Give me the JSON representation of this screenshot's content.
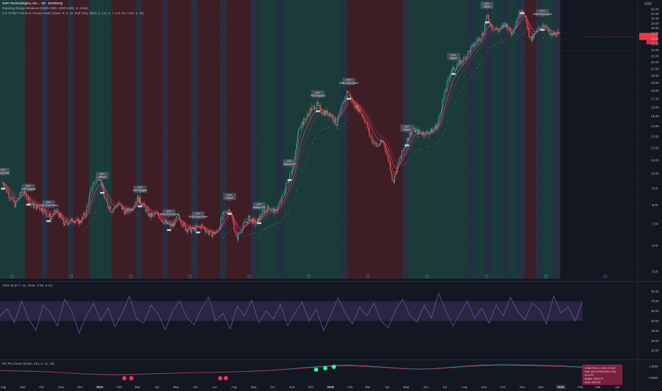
{
  "header": {
    "title": "SoFi Technologies, Inc. · 1D · NASDAQ",
    "indicator_1": "Opening Range Breakout (0930-1000, 1000-1300, 3, close)",
    "indicator_2": "1-2-3 Filter Trend w/ Choice Subs (close, 6, 9, 12, Bull Only, Slow, 5, 1.5, 2, 7, 0.9, 10, 0.25, 3, 10)",
    "currency": "USD"
  },
  "panes": {
    "rsi_label": "LRSI v6 (0.7, 13, close, 0.59, 0.41)",
    "lower_label": "RS Pro Clean (close, 123, 3, 12, 36)"
  },
  "info_box": {
    "lines": [
      "CONDITION: 1 DAYS TODAY",
      "SMA: (NO OPEN/HIGH/LOW) 0UTOFF",
      "Weight: 4695.675",
      "Score: 6900.52"
    ]
  },
  "colors": {
    "background": "#131722",
    "bull_band": "#1b3b3a",
    "bear_band": "#3f1d25",
    "neutral_band": "#273043",
    "up_candle": "#26a69a",
    "down_candle": "#ef5350",
    "rsi_line": "#7e57c2",
    "price_tag": "#f23645",
    "label_bg": "#4f5662"
  },
  "chart_data": [
    {
      "type": "candlestick",
      "title": "SoFi Technologies, Inc. · 1D · NASDAQ",
      "ylabel": "USD",
      "log_scale": true,
      "ylim": [
        4.75,
        33.5
      ],
      "x_tick_labels": [
        "Aug",
        "Sep",
        "Oct",
        "Nov",
        "Dec",
        "2024",
        "Feb",
        "Mar",
        "Apr",
        "May",
        "Jun",
        "Jul",
        "Aug",
        "Sep",
        "Oct",
        "Nov",
        "Dec",
        "2025",
        "Feb",
        "Mar",
        "Apr",
        "May",
        "Jun",
        "Jul",
        "Aug",
        "Sep",
        "Oct",
        "Nov",
        "Dec",
        "2026",
        "Feb",
        "Mar",
        "Apr"
      ],
      "y_tick_labels": [
        5,
        6,
        7,
        8,
        9,
        10,
        11,
        12,
        13,
        14,
        15,
        16,
        17,
        18,
        19,
        20,
        21,
        22,
        23,
        24,
        25,
        26,
        27,
        28,
        29,
        30,
        31,
        32
      ],
      "last_price": 26.4,
      "price_path": [
        {
          "t": "2023-07-31",
          "v": 9.4
        },
        {
          "t": "2023-08-10",
          "v": 8.6
        },
        {
          "t": "2023-08-20",
          "v": 8.0
        },
        {
          "t": "2023-09-01",
          "v": 8.9
        },
        {
          "t": "2023-09-15",
          "v": 8.0
        },
        {
          "t": "2023-10-01",
          "v": 7.8
        },
        {
          "t": "2023-10-15",
          "v": 7.3
        },
        {
          "t": "2023-10-25",
          "v": 7.7
        },
        {
          "t": "2023-11-05",
          "v": 7.0
        },
        {
          "t": "2023-11-20",
          "v": 7.2
        },
        {
          "t": "2023-12-01",
          "v": 7.1
        },
        {
          "t": "2023-12-10",
          "v": 7.6
        },
        {
          "t": "2023-12-20",
          "v": 9.2
        },
        {
          "t": "2023-12-31",
          "v": 9.9
        },
        {
          "t": "2024-01-10",
          "v": 8.2
        },
        {
          "t": "2024-01-20",
          "v": 7.7
        },
        {
          "t": "2024-01-31",
          "v": 8.1
        },
        {
          "t": "2024-02-10",
          "v": 7.6
        },
        {
          "t": "2024-02-20",
          "v": 7.8
        },
        {
          "t": "2024-03-01",
          "v": 8.4
        },
        {
          "t": "2024-03-10",
          "v": 8.0
        },
        {
          "t": "2024-03-20",
          "v": 7.4
        },
        {
          "t": "2024-04-01",
          "v": 7.5
        },
        {
          "t": "2024-04-15",
          "v": 7.0
        },
        {
          "t": "2024-04-25",
          "v": 6.9
        },
        {
          "t": "2024-05-05",
          "v": 7.4
        },
        {
          "t": "2024-05-15",
          "v": 6.8
        },
        {
          "t": "2024-05-25",
          "v": 6.7
        },
        {
          "t": "2024-06-10",
          "v": 6.9
        },
        {
          "t": "2024-06-25",
          "v": 6.5
        },
        {
          "t": "2024-07-05",
          "v": 6.6
        },
        {
          "t": "2024-07-15",
          "v": 7.5
        },
        {
          "t": "2024-07-25",
          "v": 7.8
        },
        {
          "t": "2024-08-05",
          "v": 6.3
        },
        {
          "t": "2024-08-15",
          "v": 6.9
        },
        {
          "t": "2024-08-25",
          "v": 7.3
        },
        {
          "t": "2024-09-05",
          "v": 7.0
        },
        {
          "t": "2024-09-15",
          "v": 7.6
        },
        {
          "t": "2024-09-25",
          "v": 7.9
        },
        {
          "t": "2024-10-05",
          "v": 7.6
        },
        {
          "t": "2024-10-15",
          "v": 8.3
        },
        {
          "t": "2024-10-25",
          "v": 9.5
        },
        {
          "t": "2024-11-05",
          "v": 11.0
        },
        {
          "t": "2024-11-12",
          "v": 14.0
        },
        {
          "t": "2024-11-20",
          "v": 14.5
        },
        {
          "t": "2024-12-01",
          "v": 15.8
        },
        {
          "t": "2024-12-10",
          "v": 16.3
        },
        {
          "t": "2024-12-20",
          "v": 15.4
        },
        {
          "t": "2024-12-31",
          "v": 15.3
        },
        {
          "t": "2025-01-10",
          "v": 14.2
        },
        {
          "t": "2025-01-20",
          "v": 16.2
        },
        {
          "t": "2025-01-28",
          "v": 18.0
        },
        {
          "t": "2025-02-05",
          "v": 16.5
        },
        {
          "t": "2025-02-15",
          "v": 15.8
        },
        {
          "t": "2025-02-25",
          "v": 14.5
        },
        {
          "t": "2025-03-05",
          "v": 12.9
        },
        {
          "t": "2025-03-15",
          "v": 12.1
        },
        {
          "t": "2025-03-25",
          "v": 12.6
        },
        {
          "t": "2025-04-05",
          "v": 10.6
        },
        {
          "t": "2025-04-10",
          "v": 9.4
        },
        {
          "t": "2025-04-20",
          "v": 11.0
        },
        {
          "t": "2025-04-30",
          "v": 12.4
        },
        {
          "t": "2025-05-10",
          "v": 13.7
        },
        {
          "t": "2025-05-20",
          "v": 13.4
        },
        {
          "t": "2025-05-31",
          "v": 13.3
        },
        {
          "t": "2025-06-10",
          "v": 13.5
        },
        {
          "t": "2025-06-20",
          "v": 14.2
        },
        {
          "t": "2025-06-30",
          "v": 17.5
        },
        {
          "t": "2025-07-10",
          "v": 20.5
        },
        {
          "t": "2025-07-20",
          "v": 21.5
        },
        {
          "t": "2025-07-31",
          "v": 22.5
        },
        {
          "t": "2025-08-10",
          "v": 24.0
        },
        {
          "t": "2025-08-20",
          "v": 25.5
        },
        {
          "t": "2025-08-31",
          "v": 27.0
        },
        {
          "t": "2025-09-05",
          "v": 30.5
        },
        {
          "t": "2025-09-15",
          "v": 28.0
        },
        {
          "t": "2025-09-25",
          "v": 27.5
        },
        {
          "t": "2025-10-05",
          "v": 29.0
        },
        {
          "t": "2025-10-15",
          "v": 26.8
        },
        {
          "t": "2025-10-25",
          "v": 30.5
        },
        {
          "t": "2025-11-01",
          "v": 32.3
        },
        {
          "t": "2025-11-08",
          "v": 28.5
        },
        {
          "t": "2025-11-15",
          "v": 25.7
        },
        {
          "t": "2025-11-25",
          "v": 27.5
        },
        {
          "t": "2025-12-05",
          "v": 29.0
        },
        {
          "t": "2025-12-15",
          "v": 26.5
        },
        {
          "t": "2025-12-25",
          "v": 27.0
        },
        {
          "t": "2025-12-31",
          "v": 26.4
        }
      ],
      "labels": [
        {
          "t": "2023-08-01",
          "text": "DXT\nbBaud ATR"
        },
        {
          "t": "2023-09-10",
          "text": "DXT\nATR Stopped"
        },
        {
          "t": "2023-10-12",
          "text": "DXT\nEMA Cross Down"
        },
        {
          "t": "2024-01-05",
          "text": "DXT\nbBaud"
        },
        {
          "t": "2024-03-05",
          "text": "DXT\nATR Stopped"
        },
        {
          "t": "2024-04-20",
          "text": "DXT\nEMA Cross Down"
        },
        {
          "t": "2024-06-05",
          "text": "DXT\nEMA Cross Down"
        },
        {
          "t": "2024-07-25",
          "text": "DXT\nbBaud"
        },
        {
          "t": "2024-09-10",
          "text": "DXT\nbBaud ATR"
        },
        {
          "t": "2024-10-28",
          "text": "DXT\nbBaud ATR"
        },
        {
          "t": "2024-12-12",
          "text": "DXT\nATR Stopped"
        },
        {
          "t": "2025-01-30",
          "text": "DXT\nEMA Cross Down"
        },
        {
          "t": "2025-05-02",
          "text": "DXT\nbBaud"
        },
        {
          "t": "2025-07-15",
          "text": "DXT\nbBaud"
        },
        {
          "t": "2025-09-06",
          "text": "DXT\nbBaud"
        },
        {
          "t": "2025-11-01",
          "text": "DXT\nEMA Cross Down"
        },
        {
          "t": "2025-12-03",
          "text": "DXT\nEMA Cross Down"
        }
      ],
      "bands": [
        {
          "start": "2023-07-25",
          "end": "2023-09-05",
          "kind": "bull"
        },
        {
          "start": "2023-09-05",
          "end": "2023-10-01",
          "kind": "bear"
        },
        {
          "start": "2023-10-01",
          "end": "2023-10-10",
          "kind": "neutral"
        },
        {
          "start": "2023-10-10",
          "end": "2023-11-12",
          "kind": "bear"
        },
        {
          "start": "2023-11-12",
          "end": "2023-11-20",
          "kind": "neutral"
        },
        {
          "start": "2023-11-20",
          "end": "2023-12-15",
          "kind": "bear"
        },
        {
          "start": "2023-12-15",
          "end": "2024-01-20",
          "kind": "bull"
        },
        {
          "start": "2024-01-20",
          "end": "2024-02-28",
          "kind": "bear"
        },
        {
          "start": "2024-02-28",
          "end": "2024-03-08",
          "kind": "neutral"
        },
        {
          "start": "2024-03-08",
          "end": "2024-04-10",
          "kind": "bear"
        },
        {
          "start": "2024-04-10",
          "end": "2024-04-18",
          "kind": "neutral"
        },
        {
          "start": "2024-04-18",
          "end": "2024-05-25",
          "kind": "bear"
        },
        {
          "start": "2024-05-25",
          "end": "2024-06-05",
          "kind": "neutral"
        },
        {
          "start": "2024-06-05",
          "end": "2024-07-10",
          "kind": "bear"
        },
        {
          "start": "2024-07-10",
          "end": "2024-07-20",
          "kind": "neutral"
        },
        {
          "start": "2024-07-20",
          "end": "2024-08-28",
          "kind": "bear"
        },
        {
          "start": "2024-08-28",
          "end": "2024-09-08",
          "kind": "neutral"
        },
        {
          "start": "2024-09-08",
          "end": "2024-10-10",
          "kind": "bull"
        },
        {
          "start": "2024-10-10",
          "end": "2024-10-18",
          "kind": "neutral"
        },
        {
          "start": "2024-10-18",
          "end": "2025-01-18",
          "kind": "bull"
        },
        {
          "start": "2025-01-18",
          "end": "2025-01-28",
          "kind": "neutral"
        },
        {
          "start": "2025-01-28",
          "end": "2025-04-25",
          "kind": "bear"
        },
        {
          "start": "2025-04-25",
          "end": "2025-05-05",
          "kind": "neutral"
        },
        {
          "start": "2025-05-05",
          "end": "2025-08-05",
          "kind": "bull"
        },
        {
          "start": "2025-08-05",
          "end": "2025-08-15",
          "kind": "neutral"
        },
        {
          "start": "2025-08-15",
          "end": "2025-09-01",
          "kind": "bull"
        },
        {
          "start": "2025-09-01",
          "end": "2025-09-12",
          "kind": "neutral"
        },
        {
          "start": "2025-09-12",
          "end": "2025-10-01",
          "kind": "bull"
        },
        {
          "start": "2025-10-01",
          "end": "2025-10-10",
          "kind": "neutral"
        },
        {
          "start": "2025-10-10",
          "end": "2025-10-25",
          "kind": "bull"
        },
        {
          "start": "2025-10-25",
          "end": "2025-11-05",
          "kind": "neutral"
        },
        {
          "start": "2025-11-05",
          "end": "2025-11-22",
          "kind": "bear"
        },
        {
          "start": "2025-11-22",
          "end": "2025-12-02",
          "kind": "neutral"
        },
        {
          "start": "2025-12-02",
          "end": "2025-12-20",
          "kind": "bull"
        },
        {
          "start": "2025-12-20",
          "end": "2025-12-31",
          "kind": "neutral"
        }
      ]
    },
    {
      "type": "line",
      "title": "LRSI v6 (0.7, 13, close, 0.59, 0.41)",
      "ylim": [
        15,
        87
      ],
      "y_tick_labels": [
        "20.00",
        "30.00",
        "40.00",
        "50.00",
        "60.00",
        "70.00",
        "80.00"
      ],
      "band": [
        50,
        70
      ],
      "series": [
        {
          "values": [
            55,
            62,
            48,
            70,
            52,
            40,
            66,
            58,
            45,
            72,
            60,
            38,
            55,
            68,
            50,
            63,
            44,
            58,
            75,
            52,
            48,
            66,
            57,
            41,
            60,
            70,
            53,
            46,
            62,
            74,
            50,
            58,
            42,
            65,
            55,
            71,
            48,
            60,
            52,
            67,
            45,
            58,
            69,
            50,
            62,
            40,
            56,
            73,
            58,
            47,
            64,
            55,
            68,
            50,
            43,
            61,
            72,
            56,
            49,
            66,
            53,
            78,
            60,
            45,
            58,
            70,
            52,
            63,
            48,
            66,
            55,
            74,
            59,
            51,
            68,
            62,
            47,
            75,
            58,
            64,
            50,
            69
          ]
        }
      ]
    },
    {
      "type": "line",
      "title": "RS Pro Clean (close, 123, 3, 12, 36)",
      "y_tick_labels": [
        "1.0000",
        "0.0000"
      ],
      "series": [
        {
          "values": [
            0.62,
            0.6,
            0.58,
            0.55,
            0.5,
            0.45,
            0.42,
            0.4,
            0.42,
            0.45,
            0.47,
            0.5,
            0.52,
            0.53,
            0.55,
            0.58,
            0.62,
            0.68,
            0.75,
            0.82,
            0.88,
            0.9,
            0.86,
            0.8,
            0.74,
            0.7,
            0.72,
            0.78,
            0.85,
            0.9,
            0.93,
            0.92,
            0.9,
            0.88,
            0.85,
            0.8
          ]
        }
      ]
    }
  ]
}
